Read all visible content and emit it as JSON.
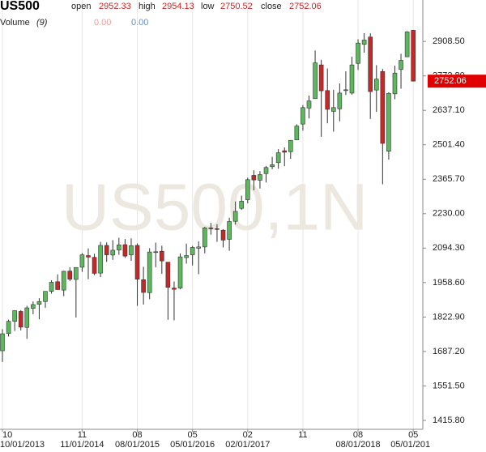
{
  "chart_data": {
    "type": "candlestick",
    "header": {
      "symbol": "US500",
      "open_label": "open",
      "open": 2952.33,
      "high_label": "high",
      "high": 2954.13,
      "low_label": "low",
      "low": 2750.52,
      "close_label": "close",
      "close": 2752.06
    },
    "volume": {
      "label": "Volume",
      "period": "(9)",
      "values": [
        0,
        0
      ],
      "value_labels": [
        "0.00",
        "0.00"
      ],
      "colors": [
        "#e8a0a0",
        "#6a8fc0"
      ]
    },
    "watermark": "US500,1N",
    "last_price": 2752.06,
    "up_color": "#5cb85c",
    "down_color": "#c62828",
    "grid": "x",
    "ylim": [
      1380.6,
      3071.7
    ],
    "yticks": [
      {
        "value": 2908.5,
        "label": "2908.50"
      },
      {
        "value": 2772.8,
        "label": "2772.80"
      },
      {
        "value": 2637.1,
        "label": "2637.10"
      },
      {
        "value": 2501.4,
        "label": "2501.40"
      },
      {
        "value": 2365.7,
        "label": "2365.70"
      },
      {
        "value": 2230,
        "label": "2230.00"
      },
      {
        "value": 2094.3,
        "label": "2094.30"
      },
      {
        "value": 1958.6,
        "label": "1958.60"
      },
      {
        "value": 1822.9,
        "label": "1822.90"
      },
      {
        "value": 1687.2,
        "label": "1687.20"
      },
      {
        "value": 1551.5,
        "label": "1551.50"
      },
      {
        "value": 1415.8,
        "label": "1415.80"
      }
    ],
    "xticks": [
      {
        "value": 0,
        "label": "10"
      },
      {
        "value": 13,
        "label": "11"
      },
      {
        "value": 22,
        "label": "08"
      },
      {
        "value": 31,
        "label": "05"
      },
      {
        "value": 40,
        "label": "02"
      },
      {
        "value": 49,
        "label": "11"
      },
      {
        "value": 58,
        "label": "08"
      },
      {
        "value": 67,
        "label": "05"
      }
    ],
    "xdates": [
      {
        "value": 0,
        "label": "10/01/2013"
      },
      {
        "value": 13,
        "label": "11/01/2014"
      },
      {
        "value": 22,
        "label": "08/01/2015"
      },
      {
        "value": 31,
        "label": "05/01/2016"
      },
      {
        "value": 40,
        "label": "02/01/2017"
      },
      {
        "value": 58,
        "label": "08/01/2018"
      },
      {
        "value": 67,
        "label": "05/01/201"
      }
    ],
    "open": [
      1690,
      1758,
      1806,
      1845,
      1782,
      1857,
      1873,
      1884,
      1924,
      1962,
      1929,
      2004,
      1971,
      2019,
      2065,
      2058,
      1996,
      2105,
      2067,
      2087,
      2108,
      2068,
      2105,
      1970,
      1919,
      2080,
      2082,
      2039,
      1937,
      1937,
      2057,
      2068,
      2094,
      2099,
      2174,
      2171,
      2165,
      2129,
      2200,
      2251,
      2285,
      2381,
      2362,
      2388,
      2415,
      2431,
      2478,
      2474,
      2521,
      2583,
      2646,
      2683,
      2816,
      2715,
      2633,
      2643,
      2718,
      2705,
      2822,
      2897,
      2926,
      2717,
      2790,
      2476,
      2702,
      2798,
      2848,
      2952.33
    ],
    "high": [
      1775,
      1813,
      1849,
      1850,
      1867,
      1884,
      1897,
      1924,
      1968,
      1991,
      2005,
      2019,
      2018,
      2075,
      2093,
      2072,
      2119,
      2117,
      2126,
      2135,
      2130,
      2133,
      2113,
      2021,
      2094,
      2116,
      2104,
      2039,
      1963,
      2073,
      2112,
      2103,
      2121,
      2178,
      2194,
      2188,
      2169,
      2214,
      2278,
      2301,
      2372,
      2401,
      2398,
      2418,
      2454,
      2484,
      2491,
      2519,
      2582,
      2658,
      2695,
      2873,
      2836,
      2802,
      2718,
      2743,
      2791,
      2848,
      2917,
      2941,
      2940,
      2815,
      2800,
      2708,
      2813,
      2860,
      2949,
      2954.13
    ],
    "low": [
      1646,
      1746,
      1768,
      1770,
      1737,
      1834,
      1814,
      1859,
      1915,
      1930,
      1905,
      1964,
      1821,
      2001,
      1972,
      1988,
      1980,
      2040,
      2048,
      2068,
      2056,
      2044,
      1867,
      1872,
      1893,
      2019,
      1993,
      1812,
      1810,
      1932,
      2033,
      2026,
      1992,
      2074,
      2147,
      2119,
      2097,
      2084,
      2187,
      2245,
      2271,
      2322,
      2329,
      2353,
      2405,
      2407,
      2417,
      2446,
      2520,
      2557,
      2605,
      2683,
      2533,
      2586,
      2553,
      2594,
      2698,
      2699,
      2796,
      2864,
      2603,
      2631,
      2346,
      2443,
      2681,
      2722,
      2848,
      2750.52
    ],
    "close": [
      1757,
      1806,
      1848,
      1783,
      1859,
      1872,
      1884,
      1924,
      1960,
      1931,
      2003,
      1972,
      2018,
      2068,
      2059,
      1995,
      2105,
      2068,
      2086,
      2107,
      2063,
      2104,
      1972,
      1920,
      2079,
      2080,
      2044,
      1940,
      1932,
      2060,
      2065,
      2097,
      2099,
      2174,
      2171,
      2168,
      2126,
      2199,
      2239,
      2279,
      2364,
      2363,
      2384,
      2412,
      2423,
      2470,
      2472,
      2519,
      2575,
      2648,
      2674,
      2824,
      2714,
      2641,
      2648,
      2705,
      2718,
      2816,
      2902,
      2914,
      2711,
      2760,
      2507,
      2704,
      2784,
      2834,
      2946,
      2752.06
    ]
  }
}
